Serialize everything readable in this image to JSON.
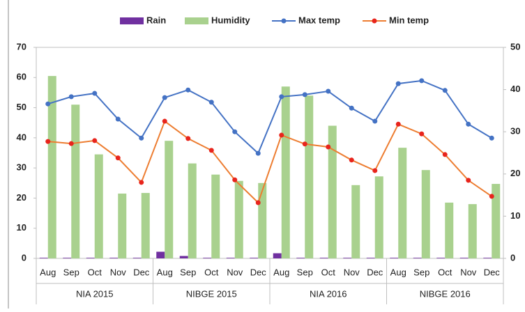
{
  "chart_data": {
    "type": "bar-line",
    "categories": [
      "Aug",
      "Sep",
      "Oct",
      "Nov",
      "Dec",
      "Aug",
      "Sep",
      "Oct",
      "Nov",
      "Dec",
      "Aug",
      "Sep",
      "Oct",
      "Nov",
      "Dec",
      "Aug",
      "Sep",
      "Oct",
      "Nov",
      "Dec"
    ],
    "groups": [
      "NIA 2015",
      "NIBGE 2015",
      "NIA 2016",
      "NIBGE 2016"
    ],
    "series": [
      {
        "name": "Rain",
        "type": "bar",
        "color": "#7030a0",
        "axis": "y",
        "values": [
          0.2,
          0.2,
          0.2,
          0.2,
          0.2,
          2.2,
          0.8,
          0.2,
          0.2,
          0.2,
          1.7,
          0.2,
          0.2,
          0.2,
          0.2,
          0.2,
          0.2,
          0.2,
          0.2,
          0.2
        ]
      },
      {
        "name": "Humidity",
        "type": "bar",
        "color": "#a9d18e",
        "axis": "y",
        "values": [
          60.5,
          51,
          34.5,
          21.5,
          21.7,
          39,
          31.5,
          27.8,
          25.7,
          25,
          57,
          54,
          44,
          24.3,
          27.2,
          36.7,
          29.3,
          18.5,
          18,
          24.7
        ]
      },
      {
        "name": "Max temp",
        "type": "line",
        "color": "#4472c4",
        "marker_color": "#4472c4",
        "axis": "y2",
        "values": [
          36.6,
          38.3,
          39.1,
          33,
          28.5,
          38.1,
          39.9,
          37,
          30,
          24.9,
          38.3,
          38.8,
          39.6,
          35.6,
          32.5,
          41.4,
          42.1,
          39.8,
          31.8,
          28.5
        ]
      },
      {
        "name": "Min temp",
        "type": "line",
        "color": "#ed7d31",
        "marker_color": "#e8241c",
        "axis": "y2",
        "values": [
          27.7,
          27.2,
          27.9,
          23.8,
          18,
          32.5,
          28.4,
          25.6,
          18.6,
          13.2,
          29.2,
          27.1,
          26.4,
          23.3,
          20.8,
          31.8,
          29.5,
          24.6,
          18.5,
          14.7
        ]
      }
    ],
    "ylim": [
      0,
      70
    ],
    "yticks": [
      0,
      10,
      20,
      30,
      40,
      50,
      60,
      70
    ],
    "y2lim": [
      0,
      50
    ],
    "y2ticks": [
      0,
      10,
      20,
      30,
      40,
      50
    ],
    "legend": "top"
  }
}
